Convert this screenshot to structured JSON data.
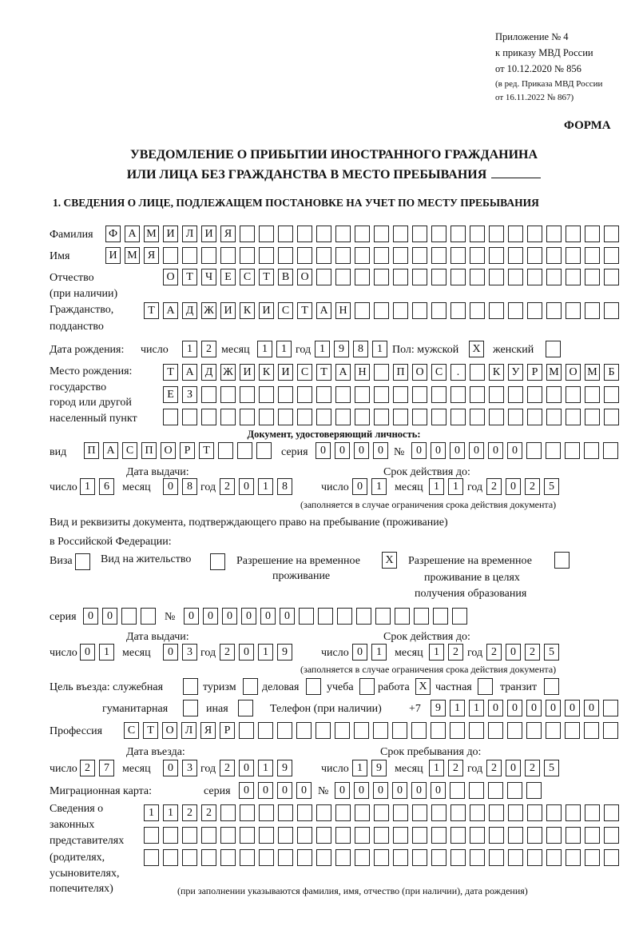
{
  "header": {
    "appendix": "Приложение № 4",
    "order": "к приказу МВД России",
    "order_date": "от 10.12.2020 № 856",
    "revision1": "(в ред. Приказа МВД России",
    "revision2": "от 16.11.2022 № 867)",
    "form_label": "ФОРМА",
    "title1": "УВЕДОМЛЕНИЕ О ПРИБЫТИИ ИНОСТРАННОГО ГРАЖДАНИНА",
    "title2": "ИЛИ ЛИЦА БЕЗ ГРАЖДАНСТВА В МЕСТО ПРЕБЫВАНИЯ",
    "section1": "1. СВЕДЕНИЯ О ЛИЦЕ, ПОДЛЕЖАЩЕМ ПОСТАНОВКЕ НА УЧЕТ ПО МЕСТУ ПРЕБЫВАНИЯ"
  },
  "labels": {
    "surname": "Фамилия",
    "name": "Имя",
    "patronymic": "Отчество",
    "patronymic2": "(при наличии)",
    "citizenship": "Гражданство,",
    "citizenship2": "подданство",
    "birth_date": "Дата рождения:",
    "day": "число",
    "month": "месяц",
    "year": "год",
    "sex": "Пол: мужской",
    "female": "женский",
    "birthplace": "Место рождения:",
    "birthplace2": "государство",
    "birthplace3": "город или другой",
    "birthplace4": "населенный пункт",
    "id_doc": "Документ, удостоверяющий личность:",
    "kind": "вид",
    "series": "серия",
    "number": "№",
    "issue_date": "Дата выдачи:",
    "valid_until": "Срок действия до:",
    "validity_note": "(заполняется в случае ограничения срока действия документа)",
    "stay_doc1": "Вид и реквизиты документа, подтверждающего право на пребывание (проживание)",
    "stay_doc2": "в Российской Федерации:",
    "visa": "Виза",
    "residence": "Вид на жительство",
    "temp_permit": "Разрешение на временное",
    "temp_permit2": "проживание",
    "edu_permit": "Разрешение на временное",
    "edu_permit2": "проживание в целях",
    "edu_permit3": "получения образования",
    "purpose": "Цель въезда: служебная",
    "tourism": "туризм",
    "business": "деловая",
    "study": "учеба",
    "work": "работа",
    "private": "частная",
    "transit": "транзит",
    "humanitarian": "гуманитарная",
    "other": "иная",
    "phone": "Телефон (при наличии)",
    "phone_prefix": "+7",
    "profession": "Профессия",
    "entry_date": "Дата въезда:",
    "stay_until": "Срок пребывания до:",
    "migration_card": "Миграционная карта:",
    "reps1": "Сведения о",
    "reps2": "законных",
    "reps3": "представителях",
    "reps4": "(родителях,",
    "reps5": "усыновителях,",
    "reps6": "попечителях)",
    "reps_note": "(при заполнении указываются фамилия, имя, отчество (при наличии), дата рождения)"
  },
  "fields": {
    "surname": [
      "Ф",
      "А",
      "М",
      "И",
      "Л",
      "И",
      "Я",
      "",
      "",
      "",
      "",
      "",
      "",
      "",
      "",
      "",
      "",
      "",
      "",
      "",
      "",
      "",
      "",
      "",
      "",
      "",
      ""
    ],
    "name": [
      "И",
      "М",
      "Я",
      "",
      "",
      "",
      "",
      "",
      "",
      "",
      "",
      "",
      "",
      "",
      "",
      "",
      "",
      "",
      "",
      "",
      "",
      "",
      "",
      "",
      "",
      "",
      ""
    ],
    "patronymic": [
      "О",
      "Т",
      "Ч",
      "Е",
      "С",
      "Т",
      "В",
      "О",
      "",
      "",
      "",
      "",
      "",
      "",
      "",
      "",
      "",
      "",
      "",
      "",
      "",
      "",
      "",
      ""
    ],
    "citizenship": [
      "Т",
      "А",
      "Д",
      "Ж",
      "И",
      "К",
      "И",
      "С",
      "Т",
      "А",
      "Н",
      "",
      "",
      "",
      "",
      "",
      "",
      "",
      "",
      "",
      "",
      "",
      "",
      "",
      ""
    ],
    "birth_day": [
      "1",
      "2"
    ],
    "birth_month": [
      "1",
      "1"
    ],
    "birth_year": [
      "1",
      "9",
      "8",
      "1"
    ],
    "sex_male": [
      "X"
    ],
    "sex_female": [
      ""
    ],
    "birthplace1": [
      "Т",
      "А",
      "Д",
      "Ж",
      "И",
      "К",
      "И",
      "С",
      "Т",
      "А",
      "Н",
      "",
      "П",
      "О",
      "С",
      ".",
      "",
      "К",
      "У",
      "Р",
      "М",
      "О",
      "М",
      "Б"
    ],
    "birthplace2": [
      "Е",
      "З",
      "",
      "",
      "",
      "",
      "",
      "",
      "",
      "",
      "",
      "",
      "",
      "",
      "",
      "",
      "",
      "",
      "",
      "",
      "",
      "",
      "",
      ""
    ],
    "birthplace3": [
      "",
      "",
      "",
      "",
      "",
      "",
      "",
      "",
      "",
      "",
      "",
      "",
      "",
      "",
      "",
      "",
      "",
      "",
      "",
      "",
      "",
      "",
      "",
      ""
    ],
    "id_kind": [
      "П",
      "А",
      "С",
      "П",
      "О",
      "Р",
      "Т",
      "",
      "",
      ""
    ],
    "id_series": [
      "0",
      "0",
      "0",
      "0"
    ],
    "id_number": [
      "0",
      "0",
      "0",
      "0",
      "0",
      "0",
      "",
      "",
      "",
      "",
      ""
    ],
    "id_issue_day": [
      "1",
      "6"
    ],
    "id_issue_month": [
      "0",
      "8"
    ],
    "id_issue_year": [
      "2",
      "0",
      "1",
      "8"
    ],
    "id_valid_day": [
      "0",
      "1"
    ],
    "id_valid_month": [
      "1",
      "1"
    ],
    "id_valid_year": [
      "2",
      "0",
      "2",
      "5"
    ],
    "visa": [
      ""
    ],
    "residence": [
      ""
    ],
    "temp_permit": [
      "X"
    ],
    "edu_permit": [
      ""
    ],
    "stay_series": [
      "0",
      "0",
      "",
      ""
    ],
    "stay_number": [
      "0",
      "0",
      "0",
      "0",
      "0",
      "0",
      "",
      "",
      "",
      "",
      "",
      "",
      "",
      "",
      ""
    ],
    "stay_issue_day": [
      "0",
      "1"
    ],
    "stay_issue_month": [
      "0",
      "3"
    ],
    "stay_issue_year": [
      "2",
      "0",
      "1",
      "9"
    ],
    "stay_valid_day": [
      "0",
      "1"
    ],
    "stay_valid_month": [
      "1",
      "2"
    ],
    "stay_valid_year": [
      "2",
      "0",
      "2",
      "5"
    ],
    "p_service": [
      ""
    ],
    "p_tourism": [
      ""
    ],
    "p_business": [
      ""
    ],
    "p_study": [
      ""
    ],
    "p_work": [
      "X"
    ],
    "p_private": [
      ""
    ],
    "p_transit": [
      ""
    ],
    "p_humanitarian": [
      ""
    ],
    "p_other": [
      ""
    ],
    "phone": [
      "9",
      "1",
      "1",
      "0",
      "0",
      "0",
      "0",
      "0",
      "0",
      ""
    ],
    "profession": [
      "С",
      "Т",
      "О",
      "Л",
      "Я",
      "Р",
      "",
      "",
      "",
      "",
      "",
      "",
      "",
      "",
      "",
      "",
      "",
      "",
      "",
      "",
      "",
      "",
      "",
      "",
      "",
      ""
    ],
    "entry_day": [
      "2",
      "7"
    ],
    "entry_month": [
      "0",
      "3"
    ],
    "entry_year": [
      "2",
      "0",
      "1",
      "9"
    ],
    "until_day": [
      "1",
      "9"
    ],
    "until_month": [
      "1",
      "2"
    ],
    "until_year": [
      "2",
      "0",
      "2",
      "5"
    ],
    "mc_series": [
      "0",
      "0",
      "0",
      "0"
    ],
    "mc_number": [
      "0",
      "0",
      "0",
      "0",
      "0",
      "0",
      "",
      "",
      "",
      "",
      ""
    ],
    "reps1": [
      "1",
      "1",
      "2",
      "2",
      "",
      "",
      "",
      "",
      "",
      "",
      "",
      "",
      "",
      "",
      "",
      "",
      "",
      "",
      "",
      "",
      "",
      "",
      "",
      "",
      ""
    ],
    "reps2": [
      "",
      "",
      "",
      "",
      "",
      "",
      "",
      "",
      "",
      "",
      "",
      "",
      "",
      "",
      "",
      "",
      "",
      "",
      "",
      "",
      "",
      "",
      "",
      "",
      ""
    ],
    "reps3": [
      "",
      "",
      "",
      "",
      "",
      "",
      "",
      "",
      "",
      "",
      "",
      "",
      "",
      "",
      "",
      "",
      "",
      "",
      "",
      "",
      "",
      "",
      "",
      "",
      ""
    ]
  }
}
